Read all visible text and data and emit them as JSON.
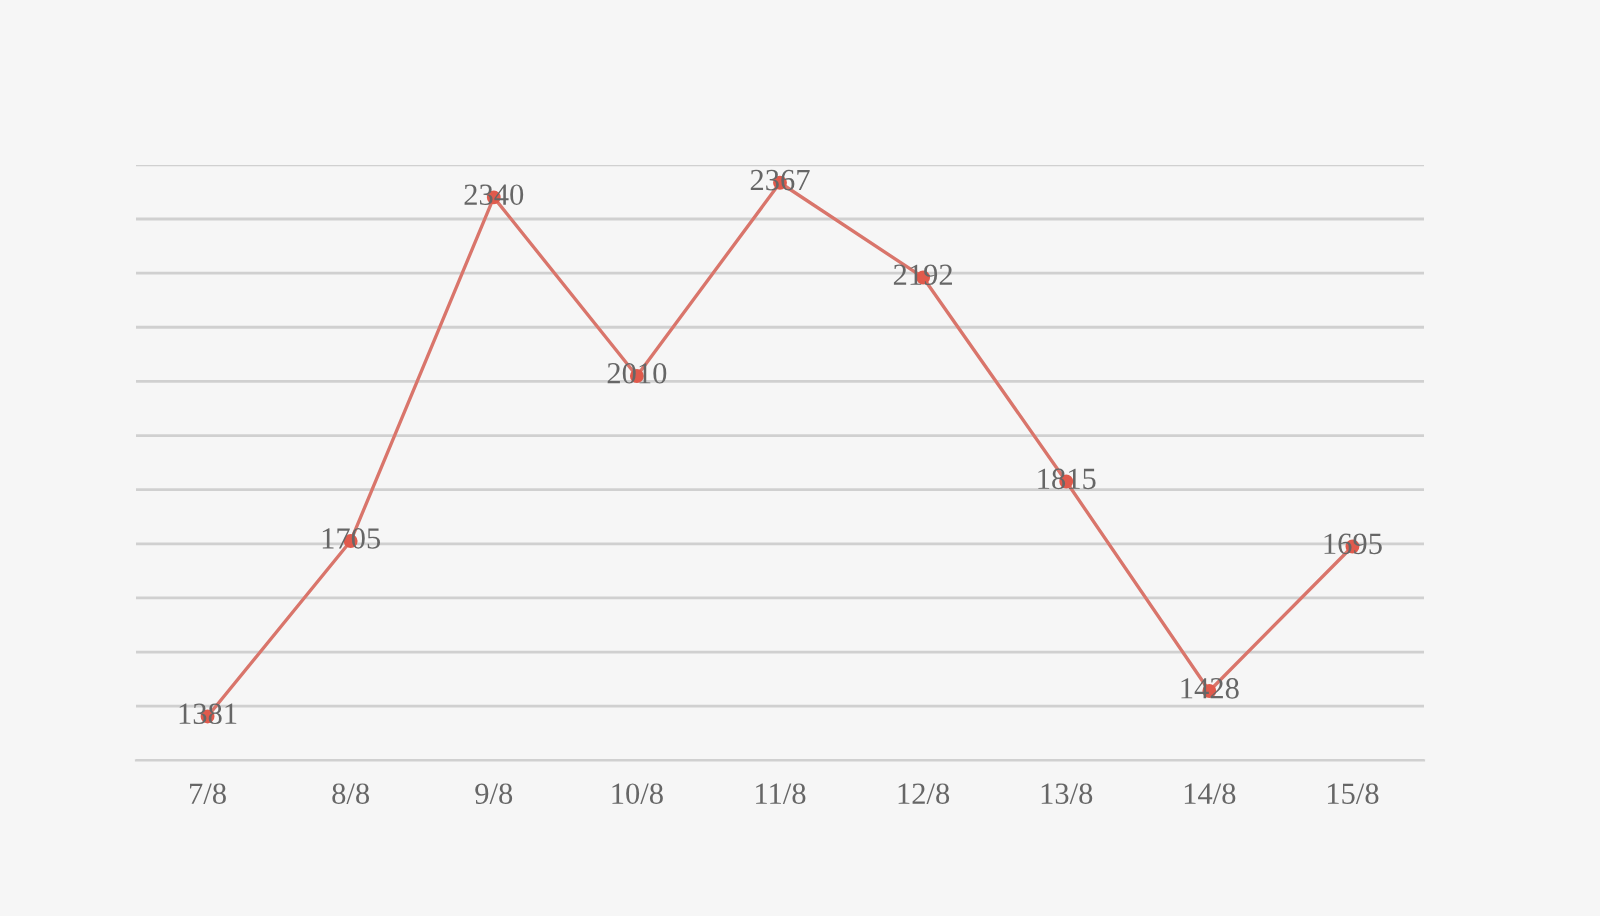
{
  "chart_data": {
    "type": "line",
    "categories": [
      "7/8",
      "8/8",
      "9/8",
      "10/8",
      "11/8",
      "12/8",
      "13/8",
      "14/8",
      "15/8"
    ],
    "series": [
      {
        "color": "#d9756b",
        "values": [
          1381,
          1705,
          2340,
          2010,
          2367,
          2192,
          1815,
          1428,
          1695
        ]
      }
    ],
    "ylim": [
      1300,
      2400
    ],
    "yticks": [
      {
        "value": 1300,
        "label": null
      },
      {
        "value": 1400,
        "label": null
      },
      {
        "value": 1500,
        "label": null
      },
      {
        "value": 1600,
        "label": null
      },
      {
        "value": 1700,
        "label": null
      },
      {
        "value": 1800,
        "label": null
      },
      {
        "value": 1900,
        "label": null
      },
      {
        "value": 2000,
        "label": null
      },
      {
        "value": 2100,
        "label": null
      },
      {
        "value": 2200,
        "label": null
      },
      {
        "value": 2300,
        "label": null
      },
      {
        "value": 2400,
        "label": null
      }
    ],
    "tick_labels": "x",
    "grid": "y",
    "marker": "circle",
    "line_style": "solid",
    "data_labels": true
  }
}
